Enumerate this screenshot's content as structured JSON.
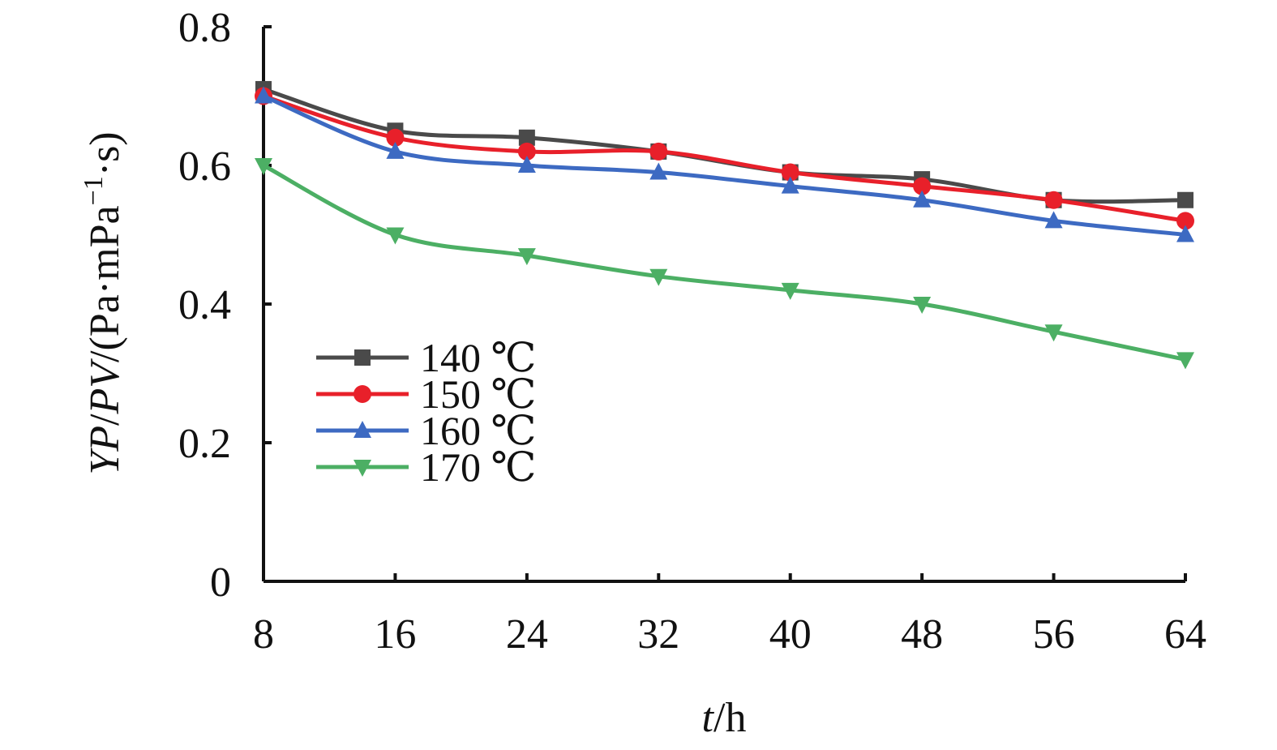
{
  "chart_data": {
    "type": "line",
    "xlabel": {
      "italic": "t",
      "rest": "/h"
    },
    "ylabel": {
      "part1": "YP",
      "sep1": "/",
      "part2": "PV",
      "sep2": "/(Pa·mPa",
      "sup": "−1",
      "tail": "·s)"
    },
    "x": [
      8,
      16,
      24,
      32,
      40,
      48,
      56,
      64
    ],
    "xticks": [
      "8",
      "16",
      "24",
      "32",
      "40",
      "48",
      "56",
      "64"
    ],
    "yticks": [
      "0",
      "0.2",
      "0.4",
      "0.6",
      "0.8"
    ],
    "ytick_values": [
      0,
      0.2,
      0.4,
      0.6,
      0.8
    ],
    "xlim": [
      8,
      64
    ],
    "ylim": [
      0,
      0.8
    ],
    "grid": false,
    "legend_position": "center-left",
    "series": [
      {
        "name": "140 ℃",
        "marker": "square",
        "color": "#4a4a4a",
        "values": [
          0.71,
          0.65,
          0.64,
          0.62,
          0.59,
          0.58,
          0.55,
          0.55
        ]
      },
      {
        "name": "150 ℃",
        "marker": "circle",
        "color": "#e8202a",
        "values": [
          0.7,
          0.64,
          0.62,
          0.62,
          0.59,
          0.57,
          0.55,
          0.52
        ]
      },
      {
        "name": "160 ℃",
        "marker": "triangle-up",
        "color": "#3d6ac2",
        "values": [
          0.7,
          0.62,
          0.6,
          0.59,
          0.57,
          0.55,
          0.52,
          0.5
        ]
      },
      {
        "name": "170 ℃",
        "marker": "triangle-down",
        "color": "#4caf64",
        "values": [
          0.6,
          0.5,
          0.47,
          0.44,
          0.42,
          0.4,
          0.36,
          0.32
        ]
      }
    ]
  }
}
